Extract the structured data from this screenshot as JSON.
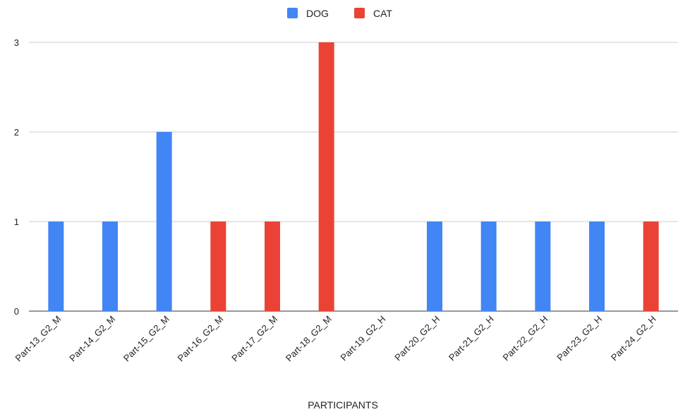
{
  "chart_data": {
    "type": "bar",
    "title": "",
    "xlabel": "PARTICIPANTS",
    "ylabel": "",
    "ylim": [
      0,
      3
    ],
    "yticks": [
      0,
      1,
      2,
      3
    ],
    "grid": true,
    "legend_position": "top-center",
    "categories": [
      "Part-13_G2_M",
      "Part-14_G2_M",
      "Part-15_G2_M",
      "Part-16_G2_M",
      "Part-17_G2_M",
      "Part-18_G2_M",
      "Part-19_G2_H",
      "Part-20_G2_H",
      "Part-21_G2_H",
      "Part-22_G2_H",
      "Part-23_G2_H",
      "Part-24_G2_H"
    ],
    "series": [
      {
        "name": "DOG",
        "color": "#4285f4",
        "values": [
          1,
          1,
          2,
          0,
          0,
          0,
          0,
          1,
          1,
          1,
          1,
          0
        ]
      },
      {
        "name": "CAT",
        "color": "#ea4335",
        "values": [
          0,
          0,
          0,
          1,
          1,
          3,
          0,
          0,
          0,
          0,
          0,
          1
        ]
      }
    ]
  }
}
